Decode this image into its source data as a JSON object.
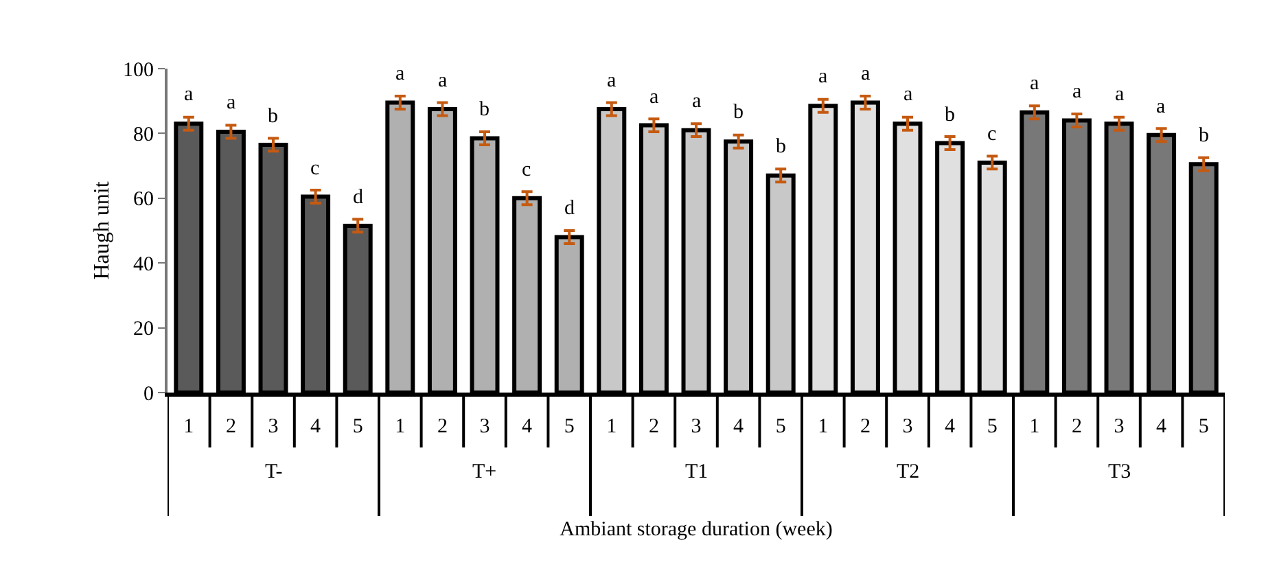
{
  "chart_data": {
    "type": "bar",
    "xlabel": "Ambiant storage duration (week)",
    "ylabel": "Haugh unit",
    "categories": [
      "1",
      "2",
      "3",
      "4",
      "5",
      "1",
      "2",
      "3",
      "4",
      "5",
      "1",
      "2",
      "3",
      "4",
      "5",
      "1",
      "2",
      "3",
      "4",
      "5",
      "1",
      "2",
      "3",
      "4",
      "5"
    ],
    "series": [
      {
        "name": "T-",
        "color": "#5a5a5a",
        "values": [
          83,
          80.5,
          76.5,
          60.5,
          51.5,
          null,
          null,
          null,
          null,
          null,
          null,
          null,
          null,
          null,
          null,
          null,
          null,
          null,
          null,
          null,
          null,
          null,
          null,
          null,
          null
        ],
        "errors": [
          2,
          2,
          2,
          2,
          2,
          null,
          null,
          null,
          null,
          null,
          null,
          null,
          null,
          null,
          null,
          null,
          null,
          null,
          null,
          null,
          null,
          null,
          null,
          null,
          null
        ],
        "value_labels": [
          "a",
          "a",
          "b",
          "c",
          "d",
          null,
          null,
          null,
          null,
          null,
          null,
          null,
          null,
          null,
          null,
          null,
          null,
          null,
          null,
          null,
          null,
          null,
          null,
          null,
          null
        ]
      },
      {
        "name": "T+",
        "color": "#b0b0b0",
        "values": [
          null,
          null,
          null,
          null,
          null,
          89.5,
          87.5,
          78.5,
          60,
          48,
          null,
          null,
          null,
          null,
          null,
          null,
          null,
          null,
          null,
          null,
          null,
          null,
          null,
          null,
          null
        ],
        "errors": [
          null,
          null,
          null,
          null,
          null,
          2,
          2,
          2,
          2,
          2,
          null,
          null,
          null,
          null,
          null,
          null,
          null,
          null,
          null,
          null,
          null,
          null,
          null,
          null,
          null
        ],
        "value_labels": [
          null,
          null,
          null,
          null,
          null,
          "a",
          "a",
          "b",
          "c",
          "d",
          null,
          null,
          null,
          null,
          null,
          null,
          null,
          null,
          null,
          null,
          null,
          null,
          null,
          null,
          null
        ]
      },
      {
        "name": "T1",
        "color": "#c8c8c8",
        "values": [
          null,
          null,
          null,
          null,
          null,
          null,
          null,
          null,
          null,
          null,
          87.5,
          82.5,
          81,
          77.5,
          67,
          null,
          null,
          null,
          null,
          null,
          null,
          null,
          null,
          null,
          null
        ],
        "errors": [
          null,
          null,
          null,
          null,
          null,
          null,
          null,
          null,
          null,
          null,
          2,
          2,
          2,
          2,
          2,
          null,
          null,
          null,
          null,
          null,
          null,
          null,
          null,
          null,
          null
        ],
        "value_labels": [
          null,
          null,
          null,
          null,
          null,
          null,
          null,
          null,
          null,
          null,
          "a",
          "a",
          "a",
          "b",
          "b",
          null,
          null,
          null,
          null,
          null,
          null,
          null,
          null,
          null,
          null
        ]
      },
      {
        "name": "T2",
        "color": "#e0e0e0",
        "values": [
          null,
          null,
          null,
          null,
          null,
          null,
          null,
          null,
          null,
          null,
          null,
          null,
          null,
          null,
          null,
          88.5,
          89.5,
          83,
          77,
          71,
          null,
          null,
          null,
          null,
          null
        ],
        "errors": [
          null,
          null,
          null,
          null,
          null,
          null,
          null,
          null,
          null,
          null,
          null,
          null,
          null,
          null,
          null,
          2,
          2,
          2,
          2,
          2,
          null,
          null,
          null,
          null,
          null
        ],
        "value_labels": [
          null,
          null,
          null,
          null,
          null,
          null,
          null,
          null,
          null,
          null,
          null,
          null,
          null,
          null,
          null,
          "a",
          "a",
          "a",
          "b",
          "c",
          null,
          null,
          null,
          null,
          null
        ]
      },
      {
        "name": "T3",
        "color": "#787878",
        "values": [
          null,
          null,
          null,
          null,
          null,
          null,
          null,
          null,
          null,
          null,
          null,
          null,
          null,
          null,
          null,
          null,
          null,
          null,
          null,
          null,
          86.5,
          84,
          83,
          79.5,
          70.5
        ],
        "errors": [
          null,
          null,
          null,
          null,
          null,
          null,
          null,
          null,
          null,
          null,
          null,
          null,
          null,
          null,
          null,
          null,
          null,
          null,
          null,
          null,
          2,
          2,
          2,
          2,
          2
        ],
        "value_labels": [
          null,
          null,
          null,
          null,
          null,
          null,
          null,
          null,
          null,
          null,
          null,
          null,
          null,
          null,
          null,
          null,
          null,
          null,
          null,
          null,
          "a",
          "a",
          "a",
          "a",
          "b"
        ]
      }
    ],
    "ylim": [
      0,
      100
    ],
    "yticks": [
      0,
      20,
      40,
      60,
      80,
      100
    ],
    "grid": false,
    "legend": false
  }
}
